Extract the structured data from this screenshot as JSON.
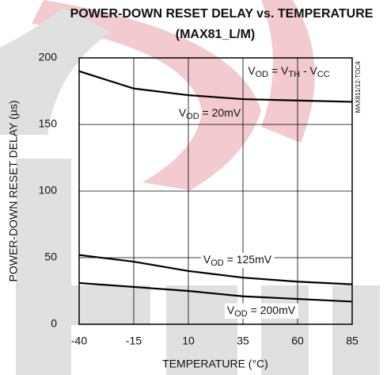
{
  "chart_data": {
    "type": "line",
    "title": "POWER-DOWN RESET DELAY vs. TEMPERATURE",
    "subtitle": "(MAX81_L/M)",
    "x_label": "TEMPERATURE (°C)",
    "y_label": "POWER-DOWN RESET DELAY (µs)",
    "side_note": "MAX811/12-TOC4",
    "x": [
      -40,
      -15,
      10,
      35,
      60,
      85
    ],
    "series": [
      {
        "color": "#000000",
        "values": [
          190,
          177,
          172,
          169,
          168,
          167
        ]
      },
      {
        "color": "#000000",
        "values": [
          52,
          47,
          40,
          35,
          32,
          30
        ]
      },
      {
        "color": "#000000",
        "values": [
          31,
          28,
          25,
          21,
          19,
          17
        ]
      }
    ],
    "annotations": [
      [
        {
          "text": "V"
        },
        {
          "text": "OD",
          "sub": true
        },
        {
          "text": " = V"
        },
        {
          "text": "TH",
          "sub": true
        },
        {
          "text": " - V"
        },
        {
          "text": "CC",
          "sub": true
        }
      ],
      [
        {
          "text": "V"
        },
        {
          "text": "OD",
          "sub": true
        },
        {
          "text": " = 20mV"
        }
      ],
      [
        {
          "text": "V"
        },
        {
          "text": "OD",
          "sub": true
        },
        {
          "text": " = 125mV"
        }
      ],
      [
        {
          "text": "V"
        },
        {
          "text": "OD",
          "sub": true
        },
        {
          "text": " = 200mV"
        }
      ]
    ],
    "xlim": [
      -40,
      85
    ],
    "ylim": [
      0,
      200
    ],
    "xticks": [
      -40,
      -15,
      10,
      35,
      60,
      85
    ],
    "yticks": [
      0,
      50,
      100,
      150,
      200
    ],
    "grid": true
  }
}
